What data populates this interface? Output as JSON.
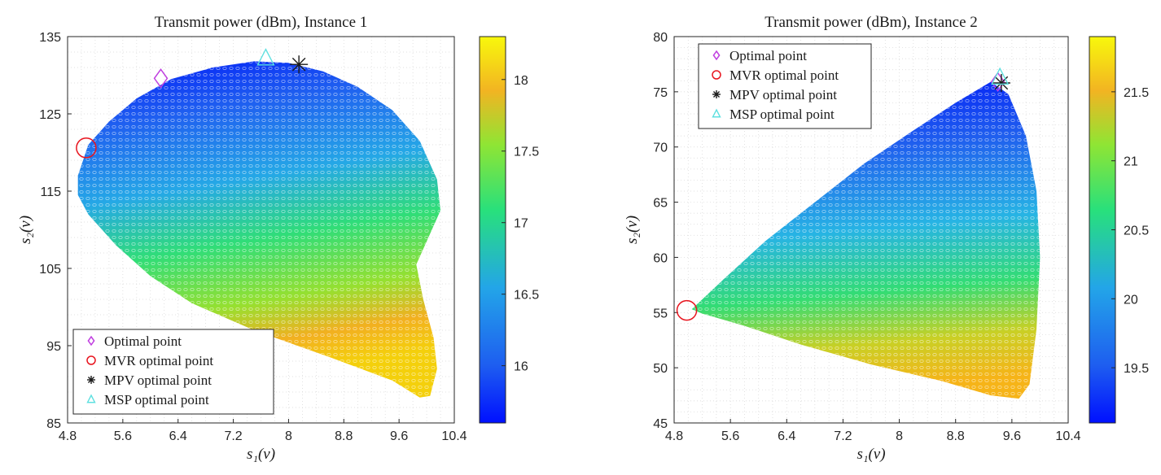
{
  "chart_data": [
    {
      "type": "scatter",
      "title": "Transmit power (dBm), Instance 1",
      "xlabel": "s₁(v)",
      "ylabel": "s₂(v)",
      "xlim": [
        4.8,
        10.4
      ],
      "ylim": [
        85,
        135
      ],
      "xticks": [
        "4.8",
        "5.6",
        "6.4",
        "7.2",
        "8",
        "8.8",
        "9.6",
        "10.4"
      ],
      "yticks": [
        "85",
        "95",
        "105",
        "115",
        "125",
        "135"
      ],
      "colorbar": {
        "min": 15.6,
        "max": 18.3,
        "ticks": [
          "16",
          "16.5",
          "17",
          "17.5",
          "18"
        ]
      },
      "region_outline": [
        [
          4.95,
          117
        ],
        [
          5.1,
          121
        ],
        [
          5.4,
          124
        ],
        [
          5.8,
          127
        ],
        [
          6.3,
          129.5
        ],
        [
          6.9,
          131
        ],
        [
          7.5,
          131.8
        ],
        [
          8.0,
          131.6
        ],
        [
          8.5,
          130.5
        ],
        [
          9.0,
          128.5
        ],
        [
          9.5,
          125.5
        ],
        [
          9.9,
          121.5
        ],
        [
          10.15,
          116.5
        ],
        [
          10.2,
          112.5
        ],
        [
          10.0,
          108.5
        ],
        [
          9.85,
          105.5
        ],
        [
          9.95,
          101
        ],
        [
          10.1,
          96
        ],
        [
          10.15,
          92
        ],
        [
          10.05,
          88.5
        ],
        [
          9.9,
          88.3
        ],
        [
          9.5,
          90.5
        ],
        [
          8.6,
          93.5
        ],
        [
          7.5,
          97
        ],
        [
          6.6,
          100.5
        ],
        [
          6.0,
          104
        ],
        [
          5.5,
          108
        ],
        [
          5.1,
          112
        ],
        [
          4.95,
          114.5
        ]
      ],
      "legend": {
        "position": "bottom-left",
        "entries": [
          "Optimal point",
          "MVR optimal point",
          "MPV optimal point",
          "MSP optimal point"
        ]
      },
      "markers": [
        {
          "name": "Optimal point",
          "symbol": "diamond",
          "color": "#c040e0",
          "x": 6.15,
          "y": 129.6
        },
        {
          "name": "MVR optimal point",
          "symbol": "circle",
          "color": "#e8141e",
          "x": 5.07,
          "y": 120.6
        },
        {
          "name": "MPV optimal point",
          "symbol": "star",
          "color": "#1a1a1a",
          "x": 8.15,
          "y": 131.4
        },
        {
          "name": "MSP optimal point",
          "symbol": "triangle",
          "color": "#5fe0e0",
          "x": 7.67,
          "y": 132.2
        }
      ]
    },
    {
      "type": "scatter",
      "title": "Transmit power (dBm), Instance 2",
      "xlabel": "s₁(v)",
      "ylabel": "s₂(v)",
      "xlim": [
        4.8,
        10.4
      ],
      "ylim": [
        45,
        80
      ],
      "xticks": [
        "4.8",
        "5.6",
        "6.4",
        "7.2",
        "8",
        "8.8",
        "9.6",
        "10.4"
      ],
      "yticks": [
        "45",
        "50",
        "55",
        "60",
        "65",
        "70",
        "75",
        "80"
      ],
      "colorbar": {
        "min": 19.1,
        "max": 21.9,
        "ticks": [
          "19.5",
          "20",
          "20.5",
          "21",
          "21.5"
        ]
      },
      "region_outline": [
        [
          5.05,
          55.3
        ],
        [
          5.5,
          58
        ],
        [
          6.1,
          61.5
        ],
        [
          6.8,
          65
        ],
        [
          7.5,
          68.5
        ],
        [
          8.2,
          71.5
        ],
        [
          8.8,
          74
        ],
        [
          9.3,
          75.9
        ],
        [
          9.55,
          74.8
        ],
        [
          9.8,
          71
        ],
        [
          9.95,
          66
        ],
        [
          10.0,
          60
        ],
        [
          9.95,
          53.5
        ],
        [
          9.85,
          48.5
        ],
        [
          9.7,
          47.2
        ],
        [
          9.3,
          47.5
        ],
        [
          8.6,
          48.8
        ],
        [
          7.6,
          50.3
        ],
        [
          6.6,
          52.1
        ],
        [
          5.8,
          53.8
        ],
        [
          5.2,
          54.9
        ]
      ],
      "legend": {
        "position": "top-left",
        "entries": [
          "Optimal point",
          "MVR optimal point",
          "MPV optimal point",
          "MSP optimal point"
        ]
      },
      "markers": [
        {
          "name": "Optimal point",
          "symbol": "diamond",
          "color": "#c040e0",
          "x": 9.4,
          "y": 75.9
        },
        {
          "name": "MVR optimal point",
          "symbol": "circle",
          "color": "#e8141e",
          "x": 4.98,
          "y": 55.2
        },
        {
          "name": "MPV optimal point",
          "symbol": "star",
          "color": "#1a1a1a",
          "x": 9.45,
          "y": 75.8
        },
        {
          "name": "MSP optimal point",
          "symbol": "triangle",
          "color": "#5fe0e0",
          "x": 9.43,
          "y": 76.3
        }
      ]
    }
  ]
}
